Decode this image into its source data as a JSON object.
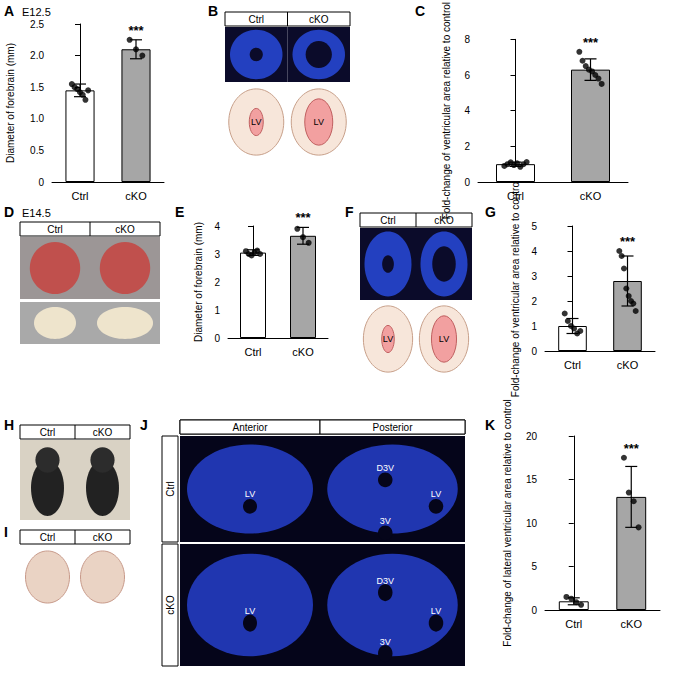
{
  "chart_data": [
    {
      "panel": "A",
      "title": "E12.5",
      "type": "bar",
      "categories": [
        "Ctrl",
        "cKO"
      ],
      "values": [
        1.45,
        2.1
      ],
      "errors": [
        0.1,
        0.15
      ],
      "points": [
        [
          1.55,
          1.5,
          1.47,
          1.42,
          1.38,
          1.3,
          1.45
        ],
        [
          2.25,
          2.1,
          2.0
        ]
      ],
      "colors": [
        "#ffffff",
        "#a6a6a6"
      ],
      "ylabel": "Diameter of forebrain (mm)",
      "ylim": [
        0,
        2.5
      ],
      "yticks": [
        0,
        0.5,
        {
          "value": 1,
          "label": "1.0"
        },
        1.5,
        {
          "value": 2,
          "label": "2.0"
        },
        2.5
      ],
      "annotations": [
        {
          "category": "cKO",
          "text": "***"
        }
      ],
      "grid": false,
      "data_labels": false
    },
    {
      "panel": "C",
      "type": "bar",
      "categories": [
        "Ctrl",
        "cKO"
      ],
      "values": [
        1.0,
        6.3
      ],
      "errors": [
        0.12,
        0.6
      ],
      "points": [
        [
          0.9,
          1.0,
          1.1,
          0.95,
          1.05,
          0.85,
          1.0,
          1.12
        ],
        [
          7.3,
          6.8,
          6.5,
          6.3,
          6.2,
          6.0,
          5.8,
          5.5
        ]
      ],
      "colors": [
        "#ffffff",
        "#a6a6a6"
      ],
      "ylabel": "Fold-change of ventricular area relative to control",
      "ylim": [
        0,
        8
      ],
      "yticks": [
        0,
        2,
        4,
        6,
        8
      ],
      "annotations": [
        {
          "category": "cKO",
          "text": "***"
        }
      ],
      "grid": false,
      "data_labels": false
    },
    {
      "panel": "E",
      "type": "bar",
      "categories": [
        "Ctrl",
        "cKO"
      ],
      "values": [
        3.05,
        3.65
      ],
      "errors": [
        0.1,
        0.3
      ],
      "points": [
        [
          3.1,
          3.0,
          2.95,
          3.05,
          3.12,
          3.0
        ],
        [
          3.9,
          3.6,
          3.4
        ]
      ],
      "colors": [
        "#ffffff",
        "#a6a6a6"
      ],
      "ylabel": "Diameter of forebrain (mm)",
      "ylim": [
        0,
        4
      ],
      "yticks": [
        0,
        1,
        2,
        3,
        4
      ],
      "annotations": [
        {
          "category": "cKO",
          "text": "***"
        }
      ],
      "grid": false,
      "data_labels": false
    },
    {
      "panel": "G",
      "type": "bar",
      "categories": [
        "Ctrl",
        "cKO"
      ],
      "values": [
        1.0,
        2.8
      ],
      "errors": [
        0.3,
        1.0
      ],
      "points": [
        [
          1.5,
          1.2,
          1.0,
          0.9,
          0.7,
          0.8
        ],
        [
          4.0,
          3.8,
          3.3,
          2.5,
          2.2,
          2.0,
          1.9,
          1.6
        ]
      ],
      "colors": [
        "#ffffff",
        "#a6a6a6"
      ],
      "ylabel": "Fold-change of ventricular area relative to control",
      "ylim": [
        0,
        5
      ],
      "yticks": [
        0,
        1,
        2,
        3,
        4,
        5
      ],
      "annotations": [
        {
          "category": "cKO",
          "text": "***"
        }
      ],
      "grid": false,
      "data_labels": false
    },
    {
      "panel": "K",
      "type": "bar",
      "categories": [
        "Ctrl",
        "cKO"
      ],
      "values": [
        1.0,
        13.0
      ],
      "errors": [
        0.4,
        3.5
      ],
      "points": [
        [
          1.5,
          1.3,
          0.9,
          0.6
        ],
        [
          17.5,
          13.5,
          12.5,
          9.5
        ]
      ],
      "colors": [
        "#ffffff",
        "#a6a6a6"
      ],
      "ylabel": "Fold-change of lateral ventricular area relative to control",
      "ylim": [
        0,
        20
      ],
      "yticks": [
        0,
        5,
        10,
        15,
        20
      ],
      "annotations": [
        {
          "category": "cKO",
          "text": "***"
        }
      ],
      "grid": false,
      "data_labels": false
    }
  ],
  "image_panels": [
    {
      "panel": "B",
      "columns": [
        "Ctrl",
        "cKO"
      ],
      "labels": [
        "LV",
        "LV"
      ]
    },
    {
      "panel": "D",
      "title": "E14.5",
      "columns": [
        "Ctrl",
        "cKO"
      ]
    },
    {
      "panel": "F",
      "columns": [
        "Ctrl",
        "cKO"
      ],
      "labels": [
        "LV",
        "LV"
      ]
    },
    {
      "panel": "H",
      "columns": [
        "Ctrl",
        "cKO"
      ]
    },
    {
      "panel": "I",
      "columns": [
        "Ctrl",
        "cKO"
      ]
    },
    {
      "panel": "J",
      "columns": [
        "Anterior",
        "Posterior"
      ],
      "rows": [
        "Ctrl",
        "cKO"
      ],
      "cells": [
        [
          [
            "LV"
          ],
          [
            "D3V",
            "3V",
            "LV"
          ]
        ],
        [
          [
            "LV"
          ],
          [
            "D3V",
            "3V",
            "LV"
          ]
        ]
      ]
    }
  ]
}
